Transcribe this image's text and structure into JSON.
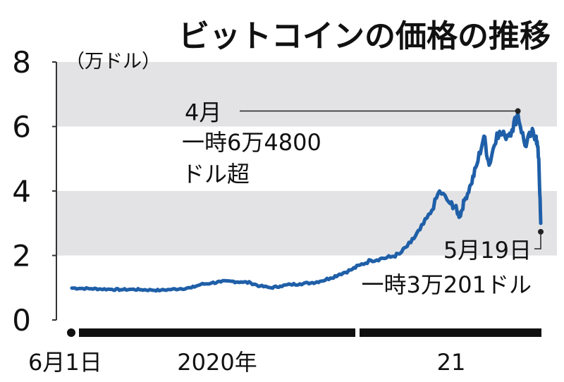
{
  "chart_data": {
    "type": "line",
    "title": "ビットコインの価格の推移",
    "ylabel": "（万ドル）",
    "ylim": [
      0,
      8
    ],
    "yticks": [
      0,
      2,
      4,
      6,
      8
    ],
    "ytick_labels": [
      "0",
      "2",
      "4",
      "6",
      "8"
    ],
    "grid_bands": true,
    "line_color": "#1f5fa8",
    "band_color": "#e3e3e5",
    "x_labels": {
      "start": "6月1日",
      "year1": "2020年",
      "year2": "21"
    },
    "series": [
      {
        "x": [
          "2019-06-01",
          "2019-06-15",
          "2019-07-01",
          "2019-07-15",
          "2019-08-01",
          "2019-08-15",
          "2019-09-01",
          "2019-09-15",
          "2019-10-01",
          "2019-10-15",
          "2019-11-01",
          "2019-11-15",
          "2019-12-01",
          "2019-12-15",
          "2020-01-01",
          "2020-01-15",
          "2020-02-01",
          "2020-02-15",
          "2020-03-01",
          "2020-03-15",
          "2020-04-01",
          "2020-04-15",
          "2020-05-01",
          "2020-05-15",
          "2020-06-01",
          "2020-06-15",
          "2020-07-01",
          "2020-07-15",
          "2020-08-01",
          "2020-08-15",
          "2020-09-01",
          "2020-09-15",
          "2020-10-01",
          "2020-10-15",
          "2020-11-01",
          "2020-11-15",
          "2020-12-01",
          "2020-12-15",
          "2021-01-01",
          "2021-01-08",
          "2021-01-15",
          "2021-01-22",
          "2021-02-01",
          "2021-02-10",
          "2021-02-21",
          "2021-03-01",
          "2021-03-13",
          "2021-03-25",
          "2021-04-05",
          "2021-04-14",
          "2021-04-25",
          "2021-05-05",
          "2021-05-12",
          "2021-05-16",
          "2021-05-19"
        ],
        "values": [
          0.99,
          0.98,
          0.97,
          0.96,
          0.95,
          0.94,
          0.95,
          0.94,
          0.93,
          0.92,
          0.95,
          0.97,
          1.0,
          1.1,
          1.15,
          1.18,
          1.2,
          1.18,
          1.15,
          1.05,
          1.0,
          1.05,
          1.1,
          1.12,
          1.15,
          1.2,
          1.3,
          1.42,
          1.55,
          1.7,
          1.85,
          1.9,
          1.95,
          2.05,
          2.4,
          2.8,
          3.3,
          4.0,
          3.6,
          3.5,
          3.2,
          3.7,
          4.2,
          4.8,
          5.7,
          4.8,
          5.8,
          5.7,
          5.9,
          6.4,
          5.4,
          5.8,
          5.7,
          5.0,
          3.0
        ]
      }
    ],
    "annotations": [
      {
        "date": "2021-04-14",
        "value": 6.48,
        "lines": [
          "4月",
          "一時6万4800",
          "ドル超"
        ]
      },
      {
        "date": "2021-05-19",
        "value": 3.02,
        "lines": [
          "5月19日",
          "一時3万201ドル"
        ]
      }
    ]
  }
}
